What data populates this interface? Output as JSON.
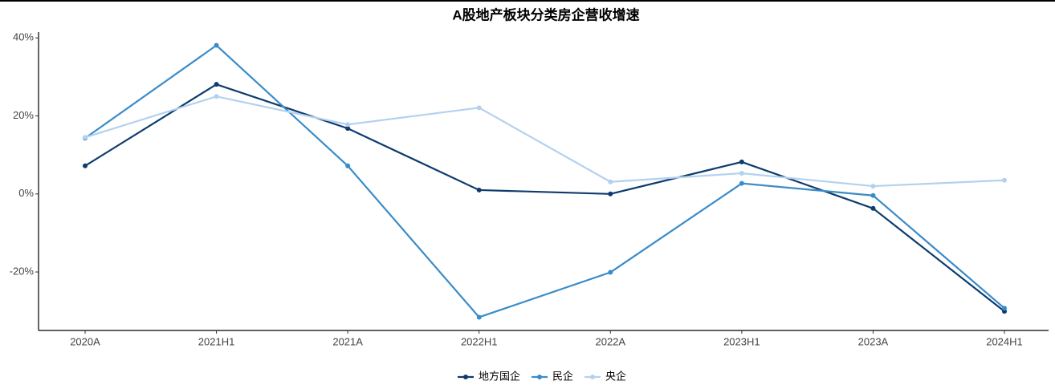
{
  "chart_data": {
    "type": "line",
    "title": "A股地产板块分类房企营收增速",
    "categories": [
      "2020A",
      "2021H1",
      "2021A",
      "2022H1",
      "2022A",
      "2023H1",
      "2023A",
      "2024H1"
    ],
    "series": [
      {
        "name": "地方国企",
        "color": "#0d3b6e",
        "values": [
          7.2,
          28.1,
          16.8,
          1.0,
          0,
          8.2,
          -3.7,
          -30.1
        ]
      },
      {
        "name": "民企",
        "color": "#3a8cc9",
        "values": [
          14.3,
          38.1,
          7.2,
          -31.6,
          -20.1,
          2.7,
          -0.4,
          -29.3
        ]
      },
      {
        "name": "央企",
        "color": "#b3d1ef",
        "values": [
          14.5,
          25.0,
          17.8,
          22.1,
          3.1,
          5.3,
          2.0,
          3.5
        ]
      }
    ],
    "ylim": [
      -35,
      41.5
    ],
    "yticks": [
      {
        "value": -20,
        "label": "-20%"
      },
      {
        "value": 0,
        "label": "0%"
      },
      {
        "value": 20,
        "label": "20%"
      },
      {
        "value": 40,
        "label": "40%"
      }
    ],
    "grid": false,
    "legend": "bottom"
  }
}
